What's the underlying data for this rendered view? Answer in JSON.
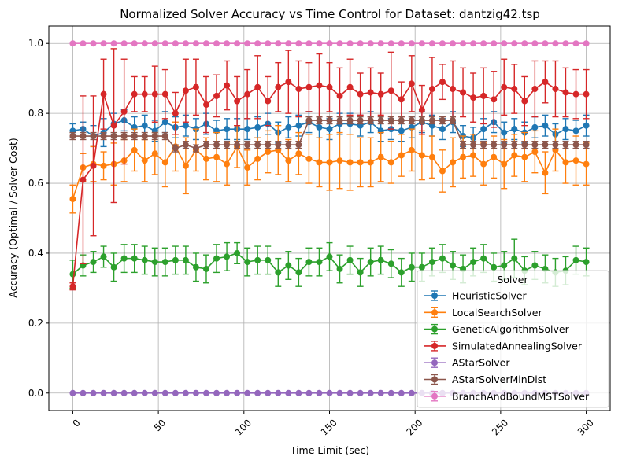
{
  "chart_data": {
    "type": "line",
    "title": "Normalized Solver Accuracy vs Time Control for Dataset: dantzig42.tsp",
    "xlabel": "Time Limit (sec)",
    "ylabel": "Accuracy (Optimal / Solver Cost)",
    "xlim": [
      -14,
      314
    ],
    "ylim": [
      -0.05,
      1.05
    ],
    "xticks": [
      0,
      50,
      100,
      150,
      200,
      250,
      300
    ],
    "yticks": [
      0.0,
      0.2,
      0.4,
      0.6,
      0.8,
      1.0
    ],
    "xtick_labels": [
      "0",
      "50",
      "100",
      "150",
      "200",
      "250",
      "300"
    ],
    "ytick_labels": [
      "0.0",
      "0.2",
      "0.4",
      "0.6",
      "0.8",
      "1.0"
    ],
    "grid": true,
    "legend_title": "Solver",
    "legend_position": "lower-right",
    "x": [
      0,
      6,
      12,
      18,
      24,
      30,
      36,
      42,
      48,
      54,
      60,
      66,
      72,
      78,
      84,
      90,
      96,
      102,
      108,
      114,
      120,
      126,
      132,
      138,
      144,
      150,
      156,
      162,
      168,
      174,
      180,
      186,
      192,
      198,
      204,
      210,
      216,
      222,
      228,
      234,
      240,
      246,
      252,
      258,
      264,
      270,
      276,
      282,
      288,
      294,
      300
    ],
    "series": [
      {
        "name": "HeuristicSolver",
        "color": "#1f77b4",
        "values": [
          0.75,
          0.755,
          0.735,
          0.745,
          0.77,
          0.78,
          0.76,
          0.765,
          0.75,
          0.775,
          0.76,
          0.765,
          0.755,
          0.77,
          0.75,
          0.755,
          0.755,
          0.755,
          0.76,
          0.77,
          0.745,
          0.76,
          0.765,
          0.775,
          0.76,
          0.755,
          0.77,
          0.77,
          0.765,
          0.775,
          0.75,
          0.755,
          0.75,
          0.76,
          0.775,
          0.765,
          0.755,
          0.775,
          0.735,
          0.73,
          0.755,
          0.775,
          0.745,
          0.755,
          0.745,
          0.76,
          0.765,
          0.74,
          0.755,
          0.75,
          0.765
        ],
        "errors": [
          0.02,
          0.02,
          0.03,
          0.04,
          0.03,
          0.03,
          0.03,
          0.03,
          0.03,
          0.03,
          0.03,
          0.03,
          0.03,
          0.03,
          0.03,
          0.03,
          0.03,
          0.03,
          0.03,
          0.03,
          0.03,
          0.03,
          0.03,
          0.03,
          0.03,
          0.03,
          0.03,
          0.03,
          0.03,
          0.03,
          0.03,
          0.03,
          0.03,
          0.03,
          0.03,
          0.03,
          0.03,
          0.03,
          0.03,
          0.03,
          0.03,
          0.03,
          0.03,
          0.03,
          0.03,
          0.03,
          0.03,
          0.03,
          0.03,
          0.03,
          0.03
        ]
      },
      {
        "name": "LocalSearchSolver",
        "color": "#ff7f0e",
        "values": [
          0.555,
          0.645,
          0.655,
          0.65,
          0.655,
          0.665,
          0.695,
          0.665,
          0.685,
          0.66,
          0.705,
          0.65,
          0.695,
          0.67,
          0.675,
          0.655,
          0.705,
          0.645,
          0.67,
          0.69,
          0.695,
          0.665,
          0.685,
          0.67,
          0.66,
          0.66,
          0.665,
          0.66,
          0.66,
          0.66,
          0.675,
          0.66,
          0.68,
          0.695,
          0.68,
          0.675,
          0.635,
          0.66,
          0.675,
          0.68,
          0.655,
          0.675,
          0.655,
          0.68,
          0.675,
          0.69,
          0.63,
          0.695,
          0.66,
          0.665,
          0.655
        ],
        "errors": [
          0.04,
          0.04,
          0.05,
          0.04,
          0.06,
          0.06,
          0.06,
          0.06,
          0.06,
          0.07,
          0.07,
          0.08,
          0.06,
          0.06,
          0.07,
          0.06,
          0.06,
          0.05,
          0.06,
          0.06,
          0.07,
          0.06,
          0.06,
          0.07,
          0.07,
          0.08,
          0.08,
          0.08,
          0.07,
          0.07,
          0.07,
          0.06,
          0.06,
          0.06,
          0.07,
          0.06,
          0.06,
          0.07,
          0.06,
          0.06,
          0.06,
          0.06,
          0.07,
          0.06,
          0.07,
          0.06,
          0.06,
          0.06,
          0.06,
          0.07,
          0.06
        ]
      },
      {
        "name": "GeneticAlgorithmSolver",
        "color": "#2ca02c",
        "values": [
          0.34,
          0.365,
          0.375,
          0.39,
          0.36,
          0.385,
          0.385,
          0.38,
          0.375,
          0.375,
          0.38,
          0.38,
          0.36,
          0.355,
          0.385,
          0.39,
          0.4,
          0.375,
          0.38,
          0.38,
          0.345,
          0.365,
          0.345,
          0.375,
          0.375,
          0.39,
          0.355,
          0.38,
          0.345,
          0.375,
          0.38,
          0.37,
          0.345,
          0.36,
          0.36,
          0.375,
          0.385,
          0.365,
          0.355,
          0.375,
          0.385,
          0.36,
          0.365,
          0.385,
          0.35,
          0.365,
          0.355,
          0.345,
          0.35,
          0.38,
          0.375
        ],
        "errors": [
          0.04,
          0.03,
          0.03,
          0.03,
          0.04,
          0.04,
          0.04,
          0.04,
          0.04,
          0.04,
          0.04,
          0.04,
          0.04,
          0.04,
          0.04,
          0.04,
          0.03,
          0.04,
          0.04,
          0.04,
          0.04,
          0.04,
          0.04,
          0.04,
          0.04,
          0.04,
          0.04,
          0.04,
          0.04,
          0.04,
          0.04,
          0.04,
          0.04,
          0.04,
          0.04,
          0.04,
          0.04,
          0.04,
          0.04,
          0.04,
          0.04,
          0.04,
          0.04,
          0.055,
          0.04,
          0.04,
          0.04,
          0.04,
          0.04,
          0.04,
          0.04
        ]
      },
      {
        "name": "SimulatedAnnealingSolver",
        "color": "#d62728",
        "values": [
          0.305,
          0.61,
          0.65,
          0.855,
          0.765,
          0.805,
          0.855,
          0.855,
          0.855,
          0.855,
          0.8,
          0.865,
          0.875,
          0.825,
          0.85,
          0.88,
          0.835,
          0.855,
          0.875,
          0.835,
          0.875,
          0.89,
          0.87,
          0.875,
          0.88,
          0.875,
          0.85,
          0.875,
          0.855,
          0.86,
          0.855,
          0.865,
          0.84,
          0.885,
          0.81,
          0.87,
          0.89,
          0.87,
          0.86,
          0.845,
          0.85,
          0.84,
          0.875,
          0.87,
          0.835,
          0.87,
          0.89,
          0.87,
          0.86,
          0.855,
          0.855
        ],
        "errors": [
          0.01,
          0.24,
          0.2,
          0.1,
          0.22,
          0.15,
          0.05,
          0.05,
          0.08,
          0.07,
          0.06,
          0.09,
          0.08,
          0.08,
          0.06,
          0.07,
          0.07,
          0.07,
          0.09,
          0.07,
          0.07,
          0.09,
          0.08,
          0.07,
          0.09,
          0.07,
          0.08,
          0.08,
          0.06,
          0.07,
          0.06,
          0.11,
          0.05,
          0.08,
          0.07,
          0.09,
          0.05,
          0.08,
          0.07,
          0.07,
          0.08,
          0.08,
          0.08,
          0.07,
          0.07,
          0.08,
          0.06,
          0.08,
          0.07,
          0.07,
          0.07
        ]
      },
      {
        "name": "AStarSolver",
        "color": "#9467bd",
        "values": [
          0,
          0,
          0,
          0,
          0,
          0,
          0,
          0,
          0,
          0,
          0,
          0,
          0,
          0,
          0,
          0,
          0,
          0,
          0,
          0,
          0,
          0,
          0,
          0,
          0,
          0,
          0,
          0,
          0,
          0,
          0,
          0,
          0,
          0,
          0,
          0,
          0,
          0,
          0,
          0,
          0,
          0,
          0,
          0,
          0,
          0,
          0,
          0,
          0,
          0,
          0
        ],
        "errors": [
          0,
          0,
          0,
          0,
          0,
          0,
          0,
          0,
          0,
          0,
          0,
          0,
          0,
          0,
          0,
          0,
          0,
          0,
          0,
          0,
          0,
          0,
          0,
          0,
          0,
          0,
          0,
          0,
          0,
          0,
          0,
          0,
          0,
          0,
          0,
          0,
          0,
          0,
          0,
          0,
          0,
          0,
          0,
          0,
          0,
          0,
          0,
          0,
          0,
          0,
          0
        ]
      },
      {
        "name": "AStarSolverMinDist",
        "color": "#8c564b",
        "values": [
          0.735,
          0.735,
          0.735,
          0.735,
          0.735,
          0.735,
          0.735,
          0.735,
          0.735,
          0.735,
          0.7,
          0.71,
          0.7,
          0.71,
          0.71,
          0.71,
          0.71,
          0.71,
          0.71,
          0.71,
          0.71,
          0.71,
          0.71,
          0.78,
          0.78,
          0.78,
          0.78,
          0.78,
          0.78,
          0.78,
          0.78,
          0.78,
          0.78,
          0.78,
          0.78,
          0.78,
          0.78,
          0.78,
          0.71,
          0.71,
          0.71,
          0.71,
          0.71,
          0.71,
          0.71,
          0.71,
          0.71,
          0.71,
          0.71,
          0.71,
          0.71
        ],
        "errors": [
          0.01,
          0.01,
          0.01,
          0.01,
          0.01,
          0.01,
          0.01,
          0.01,
          0.01,
          0.01,
          0.01,
          0.01,
          0.01,
          0.01,
          0.01,
          0.01,
          0.01,
          0.01,
          0.01,
          0.01,
          0.01,
          0.01,
          0.01,
          0.01,
          0.01,
          0.01,
          0.01,
          0.01,
          0.01,
          0.01,
          0.01,
          0.01,
          0.01,
          0.01,
          0.01,
          0.01,
          0.01,
          0.01,
          0.01,
          0.01,
          0.01,
          0.01,
          0.01,
          0.01,
          0.01,
          0.01,
          0.01,
          0.01,
          0.01,
          0.01,
          0.01
        ]
      },
      {
        "name": "BranchAndBoundMSTSolver",
        "color": "#e377c2",
        "values": [
          1,
          1,
          1,
          1,
          1,
          1,
          1,
          1,
          1,
          1,
          1,
          1,
          1,
          1,
          1,
          1,
          1,
          1,
          1,
          1,
          1,
          1,
          1,
          1,
          1,
          1,
          1,
          1,
          1,
          1,
          1,
          1,
          1,
          1,
          1,
          1,
          1,
          1,
          1,
          1,
          1,
          1,
          1,
          1,
          1,
          1,
          1,
          1,
          1,
          1,
          1
        ],
        "errors": [
          0,
          0,
          0,
          0,
          0,
          0,
          0,
          0,
          0,
          0,
          0,
          0,
          0,
          0,
          0,
          0,
          0,
          0,
          0,
          0,
          0,
          0,
          0,
          0,
          0,
          0,
          0,
          0,
          0,
          0,
          0,
          0,
          0,
          0,
          0,
          0,
          0,
          0,
          0,
          0,
          0,
          0,
          0,
          0,
          0,
          0,
          0,
          0,
          0,
          0,
          0
        ]
      }
    ]
  }
}
